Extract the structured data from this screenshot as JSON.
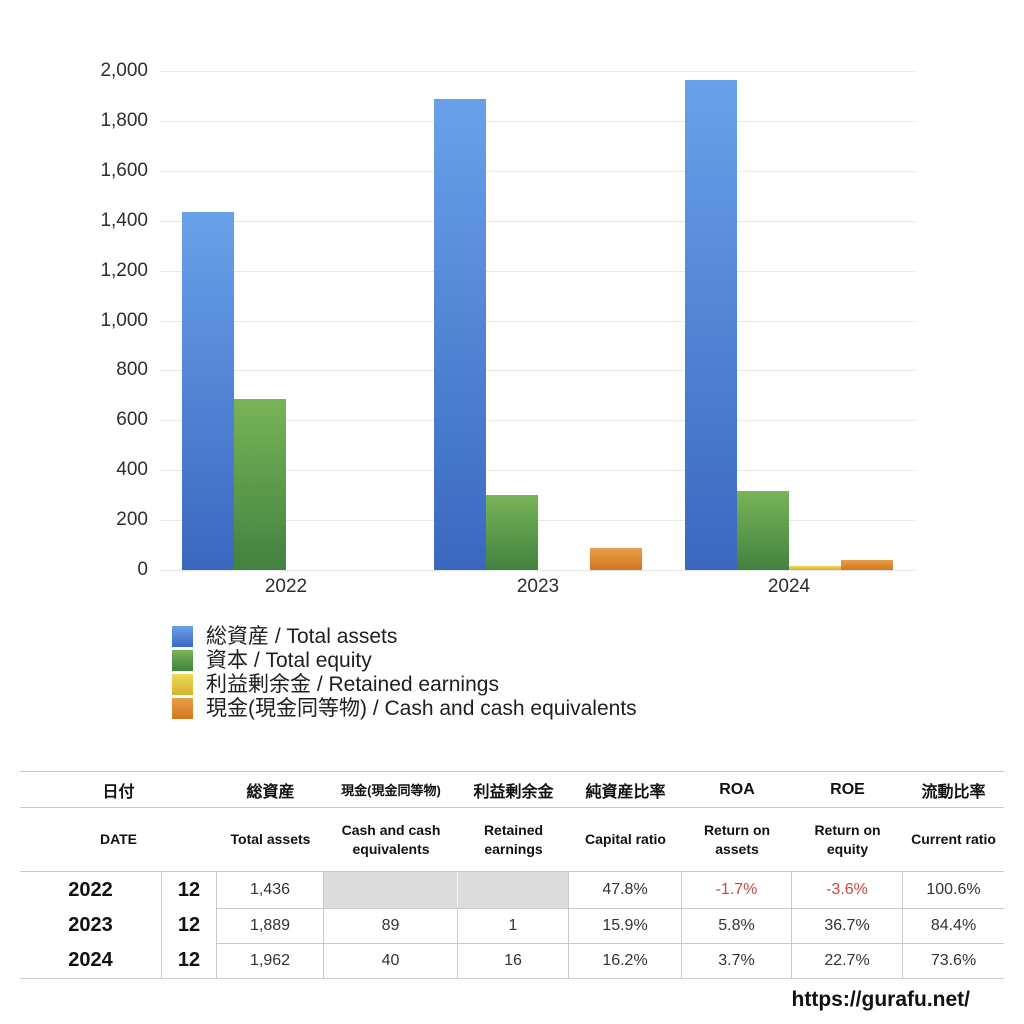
{
  "chart_data": {
    "type": "bar",
    "categories": [
      "2022",
      "2023",
      "2024"
    ],
    "series": [
      {
        "name": "総資産 / Total assets",
        "color_top": "#69a1e9",
        "color_bottom": "#3a68c0",
        "values": [
          1436,
          1889,
          1962
        ]
      },
      {
        "name": "資本 / Total equity",
        "color_top": "#78b457",
        "color_bottom": "#428240",
        "values": [
          686,
          300,
          318
        ]
      },
      {
        "name": "利益剰余金 / Retained earnings",
        "color_top": "#edd75b",
        "color_bottom": "#d5b22c",
        "values": [
          null,
          1,
          16
        ]
      },
      {
        "name": "現金(現金同等物) / Cash and cash equivalents",
        "color_top": "#e99e49",
        "color_bottom": "#d2771e",
        "values": [
          null,
          89,
          40
        ]
      }
    ],
    "title": "",
    "xlabel": "",
    "ylabel": "",
    "ylim": [
      0,
      2000
    ],
    "ytick_step": 200,
    "ytick_labels": [
      "2,000",
      "1,800",
      "1,600",
      "1,400",
      "1,200",
      "1,000",
      "800",
      "600",
      "400",
      "200",
      "0"
    ],
    "grid": true,
    "legend_position": "bottom-left"
  },
  "table": {
    "header_jp": {
      "date": "日付",
      "total_assets": "総資産",
      "cash": "現金(現金同等物)",
      "retained": "利益剰余金",
      "capital_ratio": "純資産比率",
      "roa": "ROA",
      "roe": "ROE",
      "current_ratio": "流動比率"
    },
    "header_en": {
      "date": "DATE",
      "total_assets": "Total assets",
      "cash": "Cash and cash equivalents",
      "retained": "Retained earnings",
      "capital_ratio": "Capital ratio",
      "roa": "Return on assets",
      "roe": "Return on equity",
      "current_ratio": "Current ratio"
    },
    "rows": [
      {
        "year": "2022",
        "month": "12",
        "total_assets": "1,436",
        "cash": "",
        "retained": "",
        "capital_ratio": "47.8%",
        "roa": "-1.7%",
        "roe": "-3.6%",
        "current_ratio": "100.6%"
      },
      {
        "year": "2023",
        "month": "12",
        "total_assets": "1,889",
        "cash": "89",
        "retained": "1",
        "capital_ratio": "15.9%",
        "roa": "5.8%",
        "roe": "36.7%",
        "current_ratio": "84.4%"
      },
      {
        "year": "2024",
        "month": "12",
        "total_assets": "1,962",
        "cash": "40",
        "retained": "16",
        "capital_ratio": "16.2%",
        "roa": "3.7%",
        "roe": "22.7%",
        "current_ratio": "73.6%"
      }
    ],
    "empty_cell_color": "#dcdcdc",
    "negative_color": "#c9473f"
  },
  "footer": {
    "url": "https://gurafu.net/"
  }
}
